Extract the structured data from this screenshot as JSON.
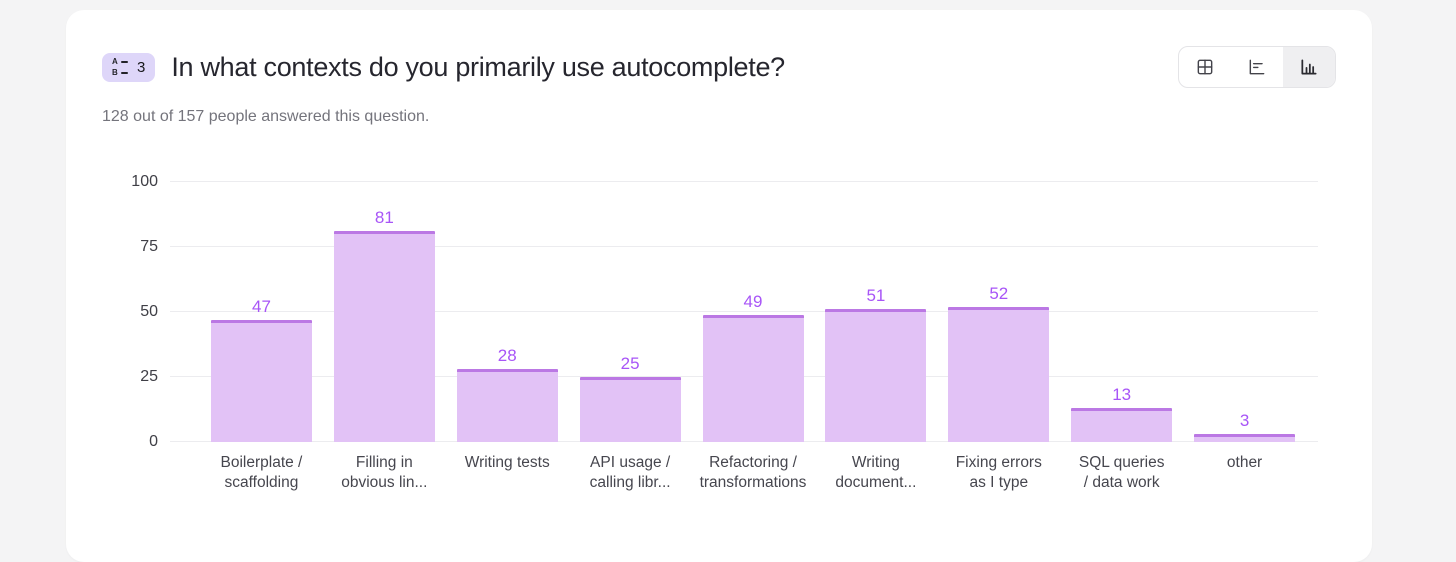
{
  "app": {
    "background": "#f4f4f5",
    "card_background": "#ffffff"
  },
  "header": {
    "badge": {
      "count": "3",
      "icon": "alphabetical-list-icon",
      "icon_letters": [
        "A",
        "B"
      ],
      "background": "#ded6f9"
    },
    "title": "In what contexts do you primarily use autocomplete?",
    "subtitle": "128 out of 157 people answered this question.",
    "view_toggle": {
      "options": [
        {
          "name": "table-view",
          "icon": "grid-icon",
          "selected": false
        },
        {
          "name": "horizontal-bar-view",
          "icon": "bar-chart-horizontal-icon",
          "selected": false
        },
        {
          "name": "vertical-bar-view",
          "icon": "bar-chart-vertical-icon",
          "selected": true
        }
      ]
    }
  },
  "chart_data": {
    "type": "bar",
    "title": "In what contexts do you primarily use autocomplete?",
    "categories": [
      "Boilerplate / scaffolding",
      "Filling in obvious lin...",
      "Writing tests",
      "API usage / calling libr...",
      "Refactoring / transformations",
      "Writing document...",
      "Fixing errors as I type",
      "SQL queries / data work",
      "other"
    ],
    "category_lines": [
      [
        "Boilerplate /",
        "scaffolding"
      ],
      [
        "Filling in",
        "obvious lin..."
      ],
      [
        "Writing tests"
      ],
      [
        "API usage /",
        "calling libr..."
      ],
      [
        "Refactoring /",
        "transformations"
      ],
      [
        "Writing",
        "document..."
      ],
      [
        "Fixing errors",
        "as I type"
      ],
      [
        "SQL queries",
        "/ data work"
      ],
      [
        "other"
      ]
    ],
    "values": [
      47,
      81,
      28,
      25,
      49,
      51,
      52,
      13,
      3
    ],
    "xlabel": "",
    "ylabel": "",
    "ylim": [
      0,
      100
    ],
    "yticks": [
      0,
      25,
      50,
      75,
      100
    ],
    "grid": true,
    "legend": false,
    "colors": {
      "bar_fill": "#e2c2f6",
      "bar_border": "#bb78e4",
      "value_label": "#a855f7",
      "gridline": "#ececef",
      "axis_text": "#3f3f46"
    }
  }
}
